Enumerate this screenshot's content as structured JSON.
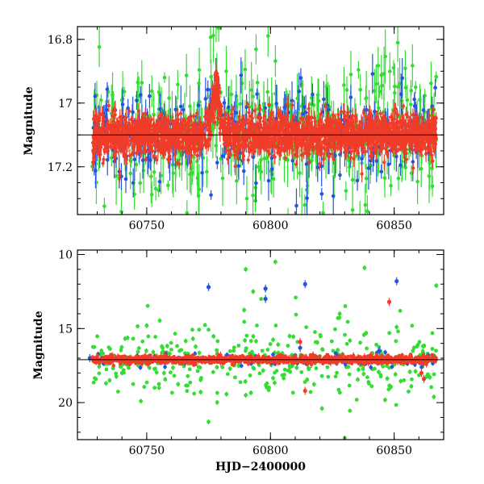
{
  "chart_data": [
    {
      "type": "scatter",
      "panel": "top",
      "ylabel": "Magnitude",
      "xlabel": "",
      "xlim": [
        60722,
        60870
      ],
      "ylim": [
        17.35,
        16.76
      ],
      "y_inverted": true,
      "x_ticks": [
        60750,
        60800,
        60850
      ],
      "y_ticks": [
        16.8,
        17,
        17.2
      ],
      "y_tick_labels": [
        "16.8",
        "17",
        "17.2"
      ],
      "x_tick_labels": [
        "60750",
        "60800",
        "60850"
      ],
      "reference_line": 17.1,
      "series": [
        {
          "name": "",
          "color": "#33dd33",
          "marker": "circle",
          "error_bars": true
        },
        {
          "name": "",
          "color": "#2255dd",
          "marker": "circle",
          "error_bars": true
        },
        {
          "name": "",
          "color": "#f03c28",
          "marker": "circle",
          "error_bars": true
        }
      ],
      "features": [
        {
          "x": 60778,
          "y": 16.96,
          "note": "brightening peak"
        }
      ]
    },
    {
      "type": "scatter",
      "panel": "bottom",
      "ylabel": "Magnitude",
      "xlabel": "HJD−2400000",
      "xlim": [
        60722,
        60870
      ],
      "ylim": [
        22.5,
        9.7
      ],
      "y_inverted": true,
      "x_ticks": [
        60750,
        60800,
        60850
      ],
      "y_ticks": [
        10,
        15,
        20
      ],
      "y_tick_labels": [
        "10",
        "15",
        "20"
      ],
      "x_tick_labels": [
        "60750",
        "60800",
        "60850"
      ],
      "reference_line": 17.1,
      "series": [
        {
          "name": "",
          "color": "#33dd33",
          "marker": "circle",
          "outliers": [
            [
              60790,
              11.0
            ],
            [
              60802,
              10.5
            ],
            [
              60838,
              10.9
            ],
            [
              60828,
              14.0
            ],
            [
              60793,
              12.5
            ],
            [
              60867,
              12.1
            ],
            [
              60851,
              14.9
            ],
            [
              60750,
              14.8
            ],
            [
              60735,
              18.5
            ],
            [
              60740,
              18.0
            ],
            [
              60757,
              18.0
            ],
            [
              60775,
              21.3
            ],
            [
              60830,
              22.4
            ],
            [
              60858,
              16.3
            ],
            [
              60790,
              19.5
            ]
          ]
        },
        {
          "name": "",
          "color": "#2255dd",
          "marker": "circle",
          "outliers": [
            [
              60775,
              12.2
            ],
            [
              60798,
              12.3
            ],
            [
              60798,
              13.0
            ],
            [
              60814,
              12.0
            ],
            [
              60851,
              11.8
            ],
            [
              60727,
              17.0
            ],
            [
              60812,
              16.3
            ],
            [
              60844,
              16.5
            ],
            [
              60866,
              17.0
            ]
          ]
        },
        {
          "name": "",
          "color": "#f03c28",
          "marker": "circle",
          "outliers": [
            [
              60848,
              13.2
            ],
            [
              60812,
              15.9
            ],
            [
              60814,
              19.2
            ],
            [
              60861,
              18.0
            ],
            [
              60862,
              18.4
            ]
          ]
        }
      ]
    }
  ],
  "colors": {
    "green": "#33dd33",
    "blue": "#2255dd",
    "red": "#f03c28",
    "frame": "#000000"
  }
}
